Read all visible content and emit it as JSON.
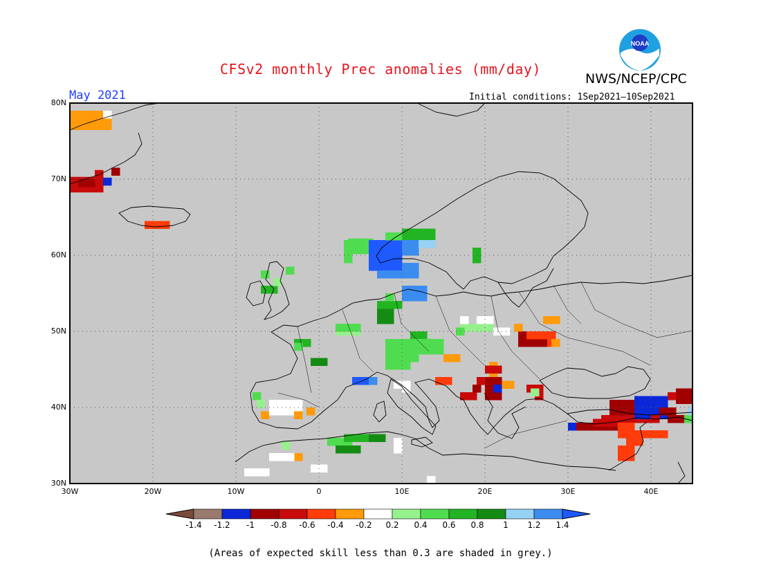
{
  "header": {
    "title": "CFSv2 monthly Prec anomalies (mm/day)",
    "org": "NWS/NCEP/CPC",
    "month": "May 2021",
    "initial_conditions": "Initial conditions: 1Sep2021—10Sep2021",
    "logo_text": "NOAA"
  },
  "map": {
    "lat_labels": [
      "80N",
      "70N",
      "60N",
      "50N",
      "40N",
      "30N"
    ],
    "lon_labels": [
      "30W",
      "20W",
      "10W",
      "0",
      "10E",
      "20E",
      "30E",
      "40E"
    ],
    "lon_range": [
      -30,
      45
    ],
    "lat_range": [
      30,
      80
    ],
    "background_color": "#c8c8c8"
  },
  "colorbar": {
    "labels": [
      "-1.4",
      "-1.2",
      "-1",
      "-0.8",
      "-0.6",
      "-0.4",
      "-0.2",
      "0.2",
      "0.4",
      "0.6",
      "0.8",
      "1",
      "1.2",
      "1.4"
    ],
    "colors": [
      "#7a4a3a",
      "#9a7a6e",
      "#0a28d8",
      "#a00000",
      "#c80a0a",
      "#ff3c0a",
      "#ff9a0a",
      "#ffffff",
      "#96f08c",
      "#50dc50",
      "#23b423",
      "#148c14",
      "#96d2f5",
      "#3c8cf0",
      "#1e5aff"
    ]
  },
  "footnote": "(Areas of expected skill less than 0.3 are shaded in grey.)"
}
